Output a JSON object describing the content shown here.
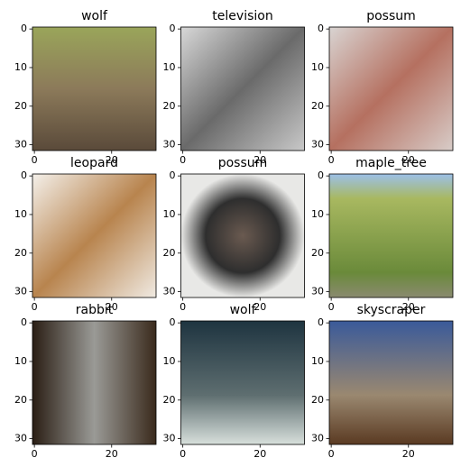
{
  "panels": [
    {
      "title": "wolf"
    },
    {
      "title": "television"
    },
    {
      "title": "possum"
    },
    {
      "title": "leopard"
    },
    {
      "title": "possum"
    },
    {
      "title": "maple_tree"
    },
    {
      "title": "rabbit"
    },
    {
      "title": "wolf"
    },
    {
      "title": "skyscraper"
    }
  ],
  "axes": {
    "xlim": [
      -0.5,
      31.5
    ],
    "ylim": [
      31.5,
      -0.5
    ],
    "xticks": [
      0,
      20
    ],
    "yticks": [
      0,
      10,
      20,
      30
    ]
  }
}
